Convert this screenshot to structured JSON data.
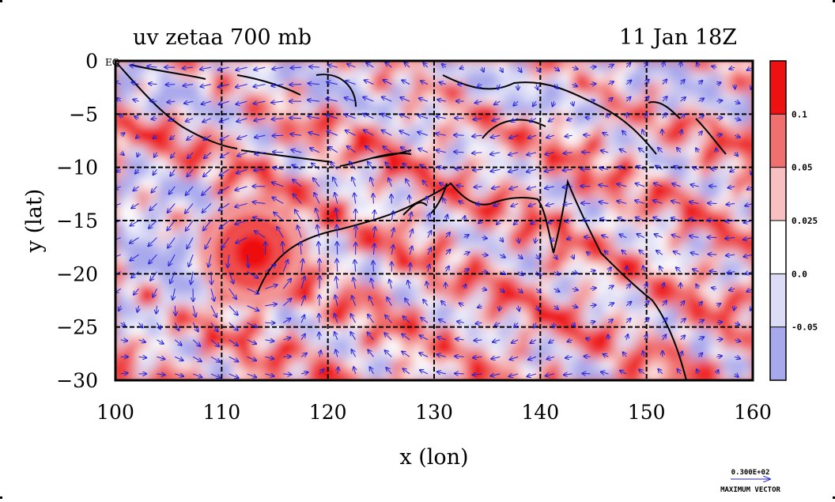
{
  "chart_data": {
    "type": "heatmap",
    "title_left": "uv zetaa 700 mb",
    "title_right": "11 Jan 18Z",
    "xlabel": "x (lon)",
    "ylabel": "y (lat)",
    "xlim": [
      100,
      160
    ],
    "ylim": [
      -30,
      0
    ],
    "x_ticks": [
      "100",
      "110",
      "120",
      "130",
      "140",
      "150",
      "160"
    ],
    "y_ticks": [
      "0",
      "−5",
      "−10",
      "−15",
      "−20",
      "−25",
      "−30"
    ],
    "x_tick_values": [
      100,
      110,
      120,
      130,
      140,
      150,
      160
    ],
    "y_tick_values": [
      0,
      -5,
      -10,
      -15,
      -20,
      -25,
      -30
    ],
    "grid": true,
    "equator_label": "EQ",
    "colorbar": {
      "labels": [
        "0.1",
        "0.05",
        "0.025",
        "0.0",
        "-0.05"
      ],
      "levels": [
        0.1,
        0.05,
        0.025,
        0.0,
        -0.05
      ],
      "colors": [
        "#ee1111",
        "#f07070",
        "#f8c0c0",
        "#ffffff",
        "#dcdcf6",
        "#a8a8ec"
      ]
    },
    "vector_key": {
      "value_label": "0.300E+02",
      "caption": "MAXIMUM VECTOR"
    },
    "features": [
      {
        "kind": "cyclonic-vorticity-maximum",
        "lon": 113,
        "lat": -18,
        "level": 0.1
      }
    ]
  },
  "colors": {
    "vector": "#2222dd",
    "coastline": "#000000",
    "strong_positive": "#ee1111",
    "medium_positive": "#f07070",
    "weak_positive": "#f8c0c0",
    "weak_negative": "#dcdcf6",
    "strong_negative": "#a8a8ec"
  }
}
